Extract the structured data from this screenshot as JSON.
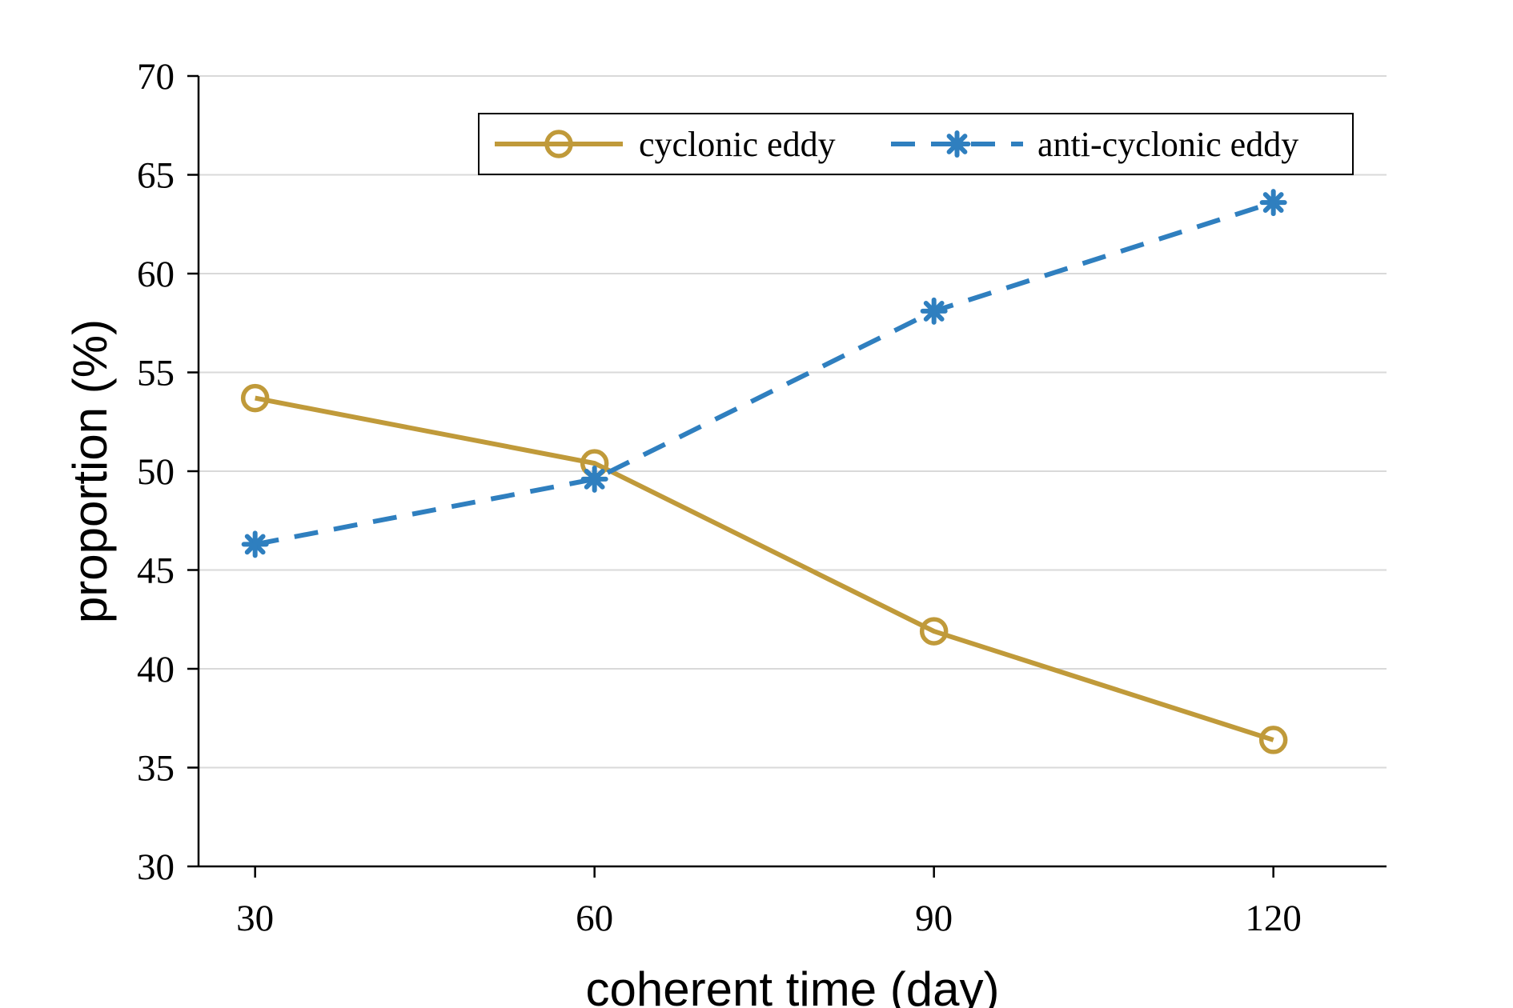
{
  "chart_data": {
    "type": "line",
    "title": "",
    "xlabel": "coherent time (day)",
    "ylabel": "proportion (%)",
    "x": [
      30,
      60,
      90,
      120
    ],
    "x_tick_labels": [
      "30",
      "60",
      "90",
      "120"
    ],
    "y_ticks": [
      30,
      35,
      40,
      45,
      50,
      55,
      60,
      65,
      70
    ],
    "y_tick_labels": [
      "30",
      "35",
      "40",
      "45",
      "50",
      "55",
      "60",
      "65",
      "70"
    ],
    "xlim": [
      25,
      130
    ],
    "ylim": [
      30,
      70
    ],
    "grid": "horizontal",
    "legend_position": "top-right",
    "series": [
      {
        "name": "cyclonic eddy",
        "values": [
          53.7,
          50.4,
          41.9,
          36.4
        ],
        "color": "#C09A3A",
        "line_style": "solid",
        "marker": "circle"
      },
      {
        "name": "anti-cyclonic eddy",
        "values": [
          46.3,
          49.6,
          58.1,
          63.6
        ],
        "color": "#2F7FBF",
        "line_style": "dashed",
        "marker": "asterisk"
      }
    ]
  }
}
